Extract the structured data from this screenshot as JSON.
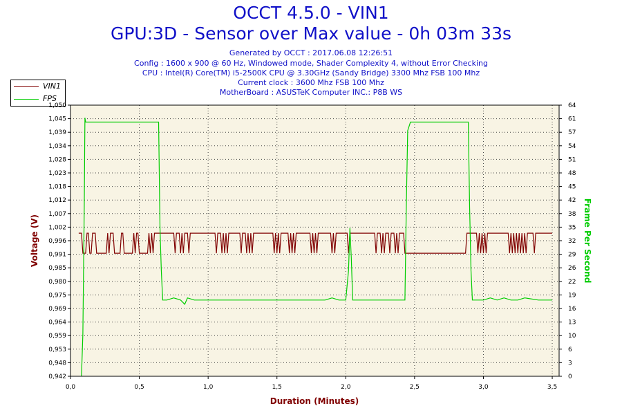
{
  "header": {
    "title_line1": "OCCT 4.5.0 - VIN1",
    "title_line2": "GPU:3D - Sensor over Max value - 0h 03m 33s",
    "info_lines": [
      "Generated by OCCT : 2017.06.08 12:26:51",
      "Config : 1600 x 900 @ 60 Hz, Windowed mode, Shader Complexity 4, without Error Checking",
      "CPU : Intel(R) Core(TM) i5-2500K CPU @ 3.30GHz (Sandy Bridge) 3300 Mhz FSB 100 Mhz",
      "Current clock : 3600 Mhz FSB 100 Mhz",
      "MotherBoard : ASUSTeK Computer INC.: P8B WS"
    ]
  },
  "colors": {
    "vin1": "#800000",
    "fps": "#00cc00",
    "plot_bg": "#f8f4e4",
    "title": "#1010c8",
    "axis_title": "#800000"
  },
  "chart_data": {
    "type": "line",
    "title": "OCCT 4.5.0 - VIN1",
    "subtitle": "GPU:3D - Sensor over Max value - 0h 03m 33s",
    "xlabel": "Duration (Minutes)",
    "ylabel_left": "Voltage (V)",
    "ylabel_right": "Frame Per Second",
    "xlim": [
      0,
      3.55
    ],
    "ylim_left": [
      0.942,
      1.05
    ],
    "ylim_right": [
      0,
      64
    ],
    "x_ticks": [
      "0,0",
      "0,5",
      "1,0",
      "1,5",
      "2,0",
      "2,5",
      "3,0",
      "3,5"
    ],
    "x_tick_values": [
      0,
      0.5,
      1.0,
      1.5,
      2.0,
      2.5,
      3.0,
      3.5
    ],
    "y_left_ticks": [
      "0,942",
      "0,948",
      "0,953",
      "0,959",
      "0,964",
      "0,969",
      "0,975",
      "0,980",
      "0,985",
      "0,991",
      "0,996",
      "1,002",
      "1,007",
      "1,012",
      "1,018",
      "1,023",
      "1,028",
      "1,034",
      "1,039",
      "1,045",
      "1,050"
    ],
    "y_right_ticks": [
      "0",
      "3",
      "6",
      "10",
      "13",
      "16",
      "19",
      "22",
      "26",
      "29",
      "32",
      "35",
      "38",
      "42",
      "45",
      "48",
      "51",
      "54",
      "57",
      "61",
      "64"
    ],
    "grid": true,
    "legend_position": "top-left",
    "series": [
      {
        "name": "VIN1",
        "axis": "left",
        "points": [
          [
            0.06,
            0.999
          ],
          [
            0.08,
            0.999
          ],
          [
            0.09,
            0.991
          ],
          [
            0.11,
            0.991
          ],
          [
            0.12,
            0.999
          ],
          [
            0.13,
            0.999
          ],
          [
            0.14,
            0.991
          ],
          [
            0.15,
            0.991
          ],
          [
            0.16,
            0.999
          ],
          [
            0.18,
            0.999
          ],
          [
            0.19,
            0.991
          ],
          [
            0.26,
            0.991
          ],
          [
            0.27,
            0.999
          ],
          [
            0.28,
            0.991
          ],
          [
            0.29,
            0.999
          ],
          [
            0.31,
            0.999
          ],
          [
            0.32,
            0.991
          ],
          [
            0.36,
            0.991
          ],
          [
            0.37,
            0.999
          ],
          [
            0.38,
            0.999
          ],
          [
            0.39,
            0.991
          ],
          [
            0.45,
            0.991
          ],
          [
            0.46,
            0.999
          ],
          [
            0.47,
            0.991
          ],
          [
            0.48,
            0.999
          ],
          [
            0.49,
            0.999
          ],
          [
            0.5,
            0.991
          ],
          [
            0.56,
            0.991
          ],
          [
            0.57,
            0.999
          ],
          [
            0.58,
            0.991
          ],
          [
            0.59,
            0.999
          ],
          [
            0.6,
            0.991
          ],
          [
            0.61,
            0.999
          ],
          [
            0.75,
            0.999
          ],
          [
            0.76,
            0.991
          ],
          [
            0.77,
            0.999
          ],
          [
            0.79,
            0.999
          ],
          [
            0.8,
            0.991
          ],
          [
            0.81,
            0.999
          ],
          [
            0.82,
            0.991
          ],
          [
            0.83,
            0.999
          ],
          [
            0.85,
            0.999
          ],
          [
            0.86,
            0.991
          ],
          [
            0.87,
            0.999
          ],
          [
            1.05,
            0.999
          ],
          [
            1.06,
            0.991
          ],
          [
            1.07,
            0.999
          ],
          [
            1.09,
            0.999
          ],
          [
            1.1,
            0.991
          ],
          [
            1.11,
            0.999
          ],
          [
            1.12,
            0.991
          ],
          [
            1.13,
            0.999
          ],
          [
            1.14,
            0.991
          ],
          [
            1.15,
            0.999
          ],
          [
            1.23,
            0.999
          ],
          [
            1.24,
            0.991
          ],
          [
            1.25,
            0.999
          ],
          [
            1.27,
            0.999
          ],
          [
            1.28,
            0.991
          ],
          [
            1.29,
            0.999
          ],
          [
            1.3,
            0.991
          ],
          [
            1.31,
            0.999
          ],
          [
            1.32,
            0.991
          ],
          [
            1.33,
            0.999
          ],
          [
            1.47,
            0.999
          ],
          [
            1.48,
            0.991
          ],
          [
            1.49,
            0.999
          ],
          [
            1.5,
            0.991
          ],
          [
            1.51,
            0.999
          ],
          [
            1.52,
            0.991
          ],
          [
            1.53,
            0.999
          ],
          [
            1.58,
            0.999
          ],
          [
            1.59,
            0.991
          ],
          [
            1.6,
            0.999
          ],
          [
            1.61,
            0.991
          ],
          [
            1.62,
            0.999
          ],
          [
            1.63,
            0.991
          ],
          [
            1.64,
            0.999
          ],
          [
            1.74,
            0.999
          ],
          [
            1.75,
            0.991
          ],
          [
            1.76,
            0.999
          ],
          [
            1.77,
            0.991
          ],
          [
            1.78,
            0.999
          ],
          [
            1.79,
            0.991
          ],
          [
            1.8,
            0.999
          ],
          [
            1.89,
            0.999
          ],
          [
            1.9,
            0.991
          ],
          [
            1.91,
            0.999
          ],
          [
            1.92,
            0.991
          ],
          [
            1.93,
            0.999
          ],
          [
            2.01,
            0.999
          ],
          [
            2.02,
            0.991
          ],
          [
            2.03,
            0.999
          ],
          [
            2.21,
            0.999
          ],
          [
            2.22,
            0.991
          ],
          [
            2.23,
            0.999
          ],
          [
            2.25,
            0.999
          ],
          [
            2.26,
            0.991
          ],
          [
            2.27,
            0.999
          ],
          [
            2.28,
            0.991
          ],
          [
            2.29,
            0.999
          ],
          [
            2.31,
            0.999
          ],
          [
            2.32,
            0.991
          ],
          [
            2.33,
            0.999
          ],
          [
            2.35,
            0.999
          ],
          [
            2.36,
            0.991
          ],
          [
            2.37,
            0.999
          ],
          [
            2.38,
            0.991
          ],
          [
            2.39,
            0.999
          ],
          [
            2.42,
            0.999
          ],
          [
            2.43,
            0.991
          ],
          [
            2.87,
            0.991
          ],
          [
            2.88,
            0.999
          ],
          [
            2.95,
            0.999
          ],
          [
            2.96,
            0.991
          ],
          [
            2.97,
            0.999
          ],
          [
            2.98,
            0.991
          ],
          [
            2.99,
            0.999
          ],
          [
            3.0,
            0.991
          ],
          [
            3.01,
            0.999
          ],
          [
            3.02,
            0.991
          ],
          [
            3.03,
            0.999
          ],
          [
            3.18,
            0.999
          ],
          [
            3.19,
            0.991
          ],
          [
            3.2,
            0.999
          ],
          [
            3.21,
            0.991
          ],
          [
            3.22,
            0.999
          ],
          [
            3.23,
            0.991
          ],
          [
            3.24,
            0.999
          ],
          [
            3.25,
            0.991
          ],
          [
            3.26,
            0.999
          ],
          [
            3.27,
            0.991
          ],
          [
            3.28,
            0.999
          ],
          [
            3.29,
            0.991
          ],
          [
            3.3,
            0.999
          ],
          [
            3.31,
            0.991
          ],
          [
            3.32,
            0.999
          ],
          [
            3.36,
            0.999
          ],
          [
            3.37,
            0.991
          ],
          [
            3.38,
            0.999
          ],
          [
            3.5,
            0.999
          ]
        ]
      },
      {
        "name": "FPS",
        "axis": "right",
        "points": [
          [
            0.08,
            0
          ],
          [
            0.09,
            10
          ],
          [
            0.1,
            40
          ],
          [
            0.105,
            61
          ],
          [
            0.11,
            60
          ],
          [
            0.64,
            60
          ],
          [
            0.65,
            35
          ],
          [
            0.66,
            25
          ],
          [
            0.67,
            18
          ],
          [
            0.7,
            18
          ],
          [
            0.75,
            18.5
          ],
          [
            0.8,
            18
          ],
          [
            0.83,
            17
          ],
          [
            0.85,
            18.5
          ],
          [
            0.9,
            18
          ],
          [
            0.95,
            18
          ],
          [
            1.1,
            18
          ],
          [
            1.3,
            18
          ],
          [
            1.55,
            18
          ],
          [
            1.7,
            18
          ],
          [
            1.85,
            18
          ],
          [
            1.9,
            18.5
          ],
          [
            1.95,
            18
          ],
          [
            2.0,
            18
          ],
          [
            2.02,
            25
          ],
          [
            2.03,
            35
          ],
          [
            2.04,
            28
          ],
          [
            2.05,
            18
          ],
          [
            2.43,
            18
          ],
          [
            2.44,
            40
          ],
          [
            2.45,
            58
          ],
          [
            2.47,
            60
          ],
          [
            2.89,
            60
          ],
          [
            2.9,
            40
          ],
          [
            2.91,
            25
          ],
          [
            2.92,
            18
          ],
          [
            2.95,
            18
          ],
          [
            3.0,
            18
          ],
          [
            3.05,
            18.5
          ],
          [
            3.1,
            18
          ],
          [
            3.15,
            18.5
          ],
          [
            3.2,
            18
          ],
          [
            3.25,
            18
          ],
          [
            3.3,
            18.5
          ],
          [
            3.4,
            18
          ],
          [
            3.5,
            18
          ]
        ]
      }
    ]
  }
}
